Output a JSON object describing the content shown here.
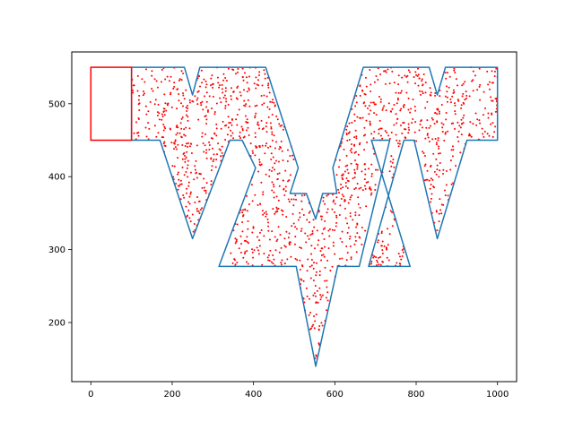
{
  "chart_data": {
    "type": "scatter",
    "title": "",
    "xlabel": "",
    "ylabel": "",
    "xlim": [
      -47,
      1047
    ],
    "ylim": [
      119,
      571
    ],
    "x_ticks": [
      0,
      200,
      400,
      600,
      800,
      1000
    ],
    "y_ticks": [
      200,
      300,
      400,
      500
    ],
    "grid": false,
    "colors": {
      "outline": "#1f77b4",
      "points": "#ff0000",
      "rect": "#ff0000"
    },
    "outline_polygon": [
      [
        100,
        550
      ],
      [
        230,
        550
      ],
      [
        250,
        512
      ],
      [
        268,
        550
      ],
      [
        430,
        550
      ],
      [
        510,
        412
      ],
      [
        490,
        377
      ],
      [
        530,
        377
      ],
      [
        553,
        342
      ],
      [
        570,
        377
      ],
      [
        605,
        377
      ],
      [
        595,
        412
      ],
      [
        670,
        550
      ],
      [
        832,
        550
      ],
      [
        852,
        512
      ],
      [
        872,
        550
      ],
      [
        1000,
        550
      ],
      [
        1000,
        450
      ],
      [
        925,
        450
      ],
      [
        852,
        315
      ],
      [
        795,
        450
      ],
      [
        770,
        450
      ],
      [
        683,
        277
      ],
      [
        785,
        277
      ],
      [
        690,
        450
      ],
      [
        735,
        450
      ],
      [
        660,
        277
      ],
      [
        607,
        277
      ],
      [
        553,
        140
      ],
      [
        505,
        277
      ],
      [
        470,
        277
      ],
      [
        315,
        277
      ],
      [
        405,
        412
      ],
      [
        372,
        450
      ],
      [
        342,
        450
      ],
      [
        250,
        315
      ],
      [
        170,
        450
      ],
      [
        100,
        450
      ],
      [
        100,
        550
      ]
    ],
    "highlight_rect": {
      "x0": 0,
      "x1": 100,
      "y0": 450,
      "y1": 550
    },
    "point_count": 1500
  }
}
